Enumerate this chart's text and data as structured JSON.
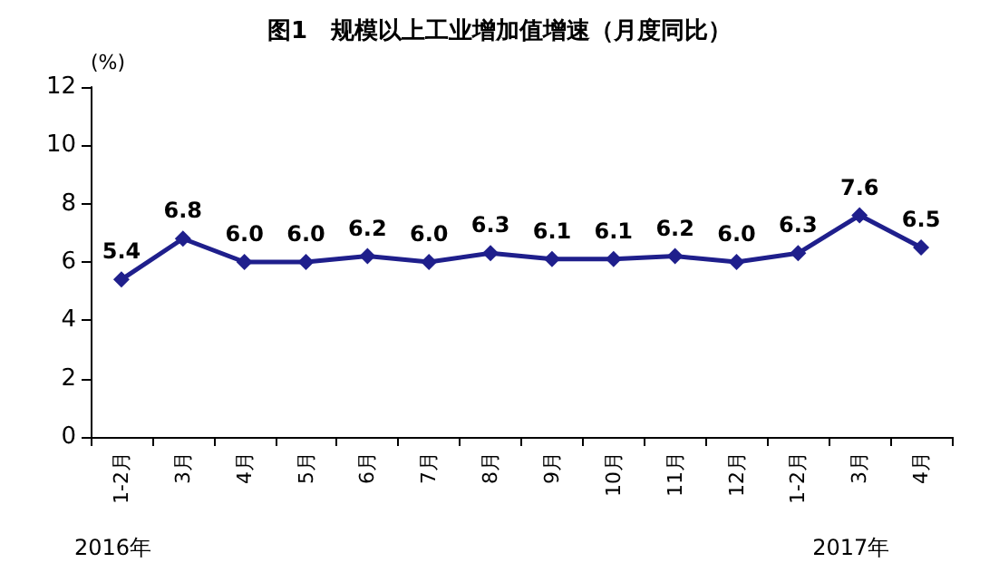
{
  "chart_data": {
    "type": "line",
    "title": "图1　规模以上工业增加值增速（月度同比）",
    "ylabel": "(%)",
    "categories": [
      "1-2月",
      "3月",
      "4月",
      "5月",
      "6月",
      "7月",
      "8月",
      "9月",
      "10月",
      "11月",
      "12月",
      "1-2月",
      "3月",
      "4月"
    ],
    "series": [
      {
        "color": "#1f1f8c",
        "values": [
          5.4,
          6.8,
          6.0,
          6.0,
          6.2,
          6.0,
          6.3,
          6.1,
          6.1,
          6.2,
          6.0,
          6.3,
          7.6,
          6.5
        ]
      }
    ],
    "ylim": [
      0,
      12
    ],
    "yticks": [
      0,
      2,
      4,
      6,
      8,
      10,
      12
    ],
    "grid": false,
    "marker": "diamond",
    "line_style": "solid",
    "value_labels": [
      "5.4",
      "6.8",
      "6.0",
      "6.0",
      "6.2",
      "6.0",
      "6.3",
      "6.1",
      "6.1",
      "6.2",
      "6.0",
      "6.3",
      "7.6",
      "6.5"
    ],
    "annotations": [
      "2016年",
      "2017年"
    ]
  }
}
